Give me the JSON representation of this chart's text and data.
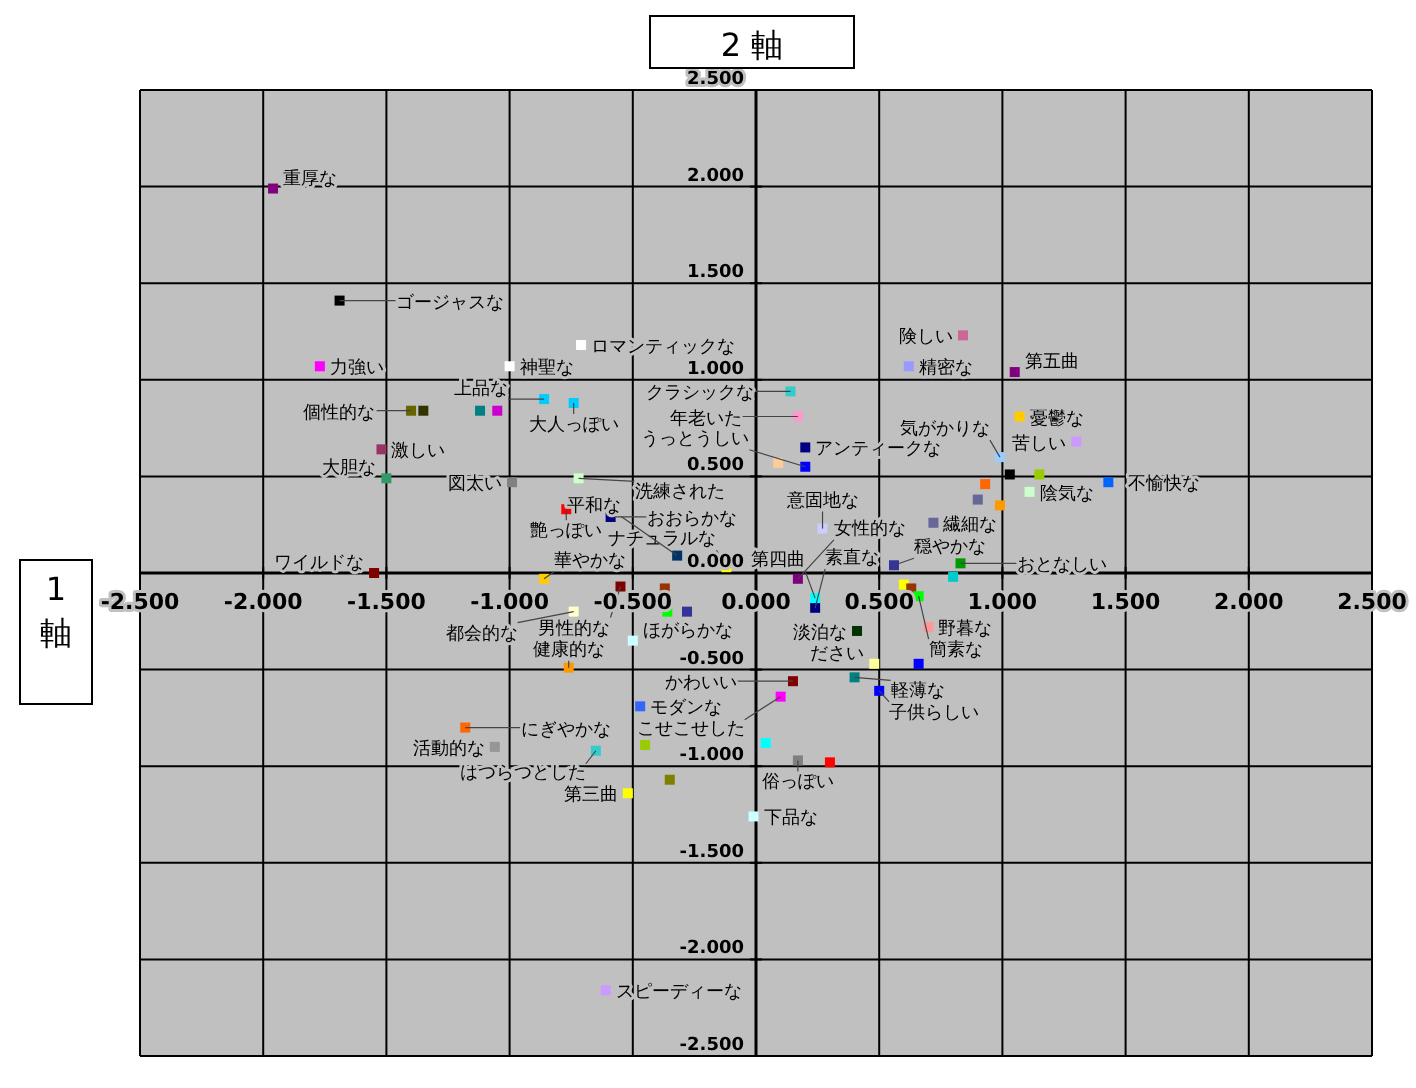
{
  "chart_data": {
    "type": "scatter",
    "ylabel": "2 軸",
    "xlabel": "1 軸",
    "xlim": [
      -2.5,
      2.5
    ],
    "ylim": [
      -2.5,
      2.5
    ],
    "xticks": [
      {
        "value": -2.5,
        "label": "-2.500"
      },
      {
        "value": -2,
        "label": "-2.000"
      },
      {
        "value": -1.5,
        "label": "-1.500"
      },
      {
        "value": -1,
        "label": "-1.000"
      },
      {
        "value": -0.5,
        "label": "-0.500"
      },
      {
        "value": 0,
        "label": "0.000"
      },
      {
        "value": 0.5,
        "label": "0.500"
      },
      {
        "value": 1,
        "label": "1.000"
      },
      {
        "value": 1.5,
        "label": "1.500"
      },
      {
        "value": 2,
        "label": "2.000"
      },
      {
        "value": 2.5,
        "label": "2.500"
      }
    ],
    "yticks": [
      {
        "value": -2.5,
        "label": "-2.500"
      },
      {
        "value": -2,
        "label": "-2.000"
      },
      {
        "value": -1.5,
        "label": "-1.500"
      },
      {
        "value": -1,
        "label": "-1.000"
      },
      {
        "value": -0.5,
        "label": "-0.500"
      },
      {
        "value": 0,
        "label": "0.000"
      },
      {
        "value": 0.5,
        "label": "0.500"
      },
      {
        "value": 1,
        "label": "1.000"
      },
      {
        "value": 1.5,
        "label": "1.500"
      },
      {
        "value": 2,
        "label": "2.000"
      },
      {
        "value": 2.5,
        "label": "2.500"
      }
    ],
    "grid": true,
    "marker": "square",
    "x": [
      -1.96,
      -1.69,
      -1.77,
      -1.0,
      -0.71,
      -0.86,
      -0.74,
      -1.4,
      -1.35,
      -1.12,
      -1.05,
      -1.52,
      -1.5,
      -0.99,
      -0.72,
      -0.77,
      -0.59,
      -1.55,
      -0.86,
      -0.55,
      -0.37,
      -0.74,
      -0.36,
      -0.28,
      -0.5,
      -0.76,
      -0.47,
      -1.18,
      -1.06,
      -0.65,
      -0.45,
      -0.35,
      -0.52,
      -0.61,
      -0.01,
      0.17,
      0.3,
      0.04,
      0.15,
      0.1,
      0.4,
      0.48,
      0.5,
      0.66,
      0.41,
      0.7,
      0.24,
      0.24,
      0.17,
      -0.12,
      -0.32,
      0.27,
      0.2,
      0.2,
      0.09,
      0.14,
      0.17,
      0.62,
      0.84,
      1.05,
      1.07,
      1.3,
      0.99,
      1.03,
      1.15,
      1.43,
      0.93,
      1.11,
      0.9,
      0.99,
      0.72,
      0.56,
      0.83,
      0.8,
      0.6,
      0.63,
      0.66
    ],
    "values": [
      1.99,
      1.41,
      1.07,
      1.07,
      1.18,
      0.9,
      0.88,
      0.84,
      0.84,
      0.84,
      0.84,
      0.64,
      0.49,
      0.47,
      0.49,
      0.33,
      0.29,
      0.0,
      -0.03,
      -0.07,
      -0.08,
      -0.2,
      -0.2,
      -0.2,
      -0.35,
      -0.49,
      -0.69,
      -0.8,
      -0.9,
      -0.92,
      -0.89,
      -1.07,
      -1.14,
      -2.16,
      -1.26,
      -0.97,
      -0.98,
      -0.88,
      -0.56,
      -0.64,
      -0.54,
      -0.47,
      -0.61,
      -0.47,
      -0.3,
      -0.28,
      -0.18,
      -0.13,
      -0.03,
      0.03,
      0.09,
      0.23,
      0.65,
      0.55,
      0.57,
      0.94,
      0.81,
      1.07,
      1.23,
      1.04,
      0.81,
      0.68,
      0.6,
      0.51,
      0.51,
      0.47,
      0.46,
      0.42,
      0.38,
      0.35,
      0.26,
      0.04,
      0.05,
      -0.02,
      -0.06,
      -0.08,
      -0.12
    ],
    "colors": [
      "#800080",
      "#000000",
      "#ff00ff",
      "#ffffff",
      "#ffffff",
      "#00ccff",
      "#00ccff",
      "#666600",
      "#333300",
      "#008080",
      "#cc00cc",
      "#993366",
      "#339966",
      "#808080",
      "#ccffcc",
      "#ff0000",
      "#000080",
      "#800000",
      "#ffcc00",
      "#800000",
      "#993300",
      "#ffffcc",
      "#00ff00",
      "#333399",
      "#ccffff",
      "#ff9900",
      "#3366ff",
      "#ff6600",
      "#969696",
      "#33cccc",
      "#99cc00",
      "#808000",
      "#ffff00",
      "#cc99ff",
      "#ccffff",
      "#808080",
      "#ff0000",
      "#00ffff",
      "#800000",
      "#ff00ff",
      "#008080",
      "#ffff99",
      "#0000ff",
      "#0000ff",
      "#003300",
      "#ff9999",
      "#000080",
      "#00ffff",
      "#800080",
      "#ffff00",
      "#003366",
      "#ccccff",
      "#000080",
      "#0000ff",
      "#ffcc99",
      "#33cccc",
      "#ff99cc",
      "#9999ff",
      "#cc6699",
      "#800080",
      "#ffcc00",
      "#cc99ff",
      "#99ccff",
      "#000000",
      "#99cc00",
      "#0066ff",
      "#ff6600",
      "#ccffcc",
      "#666699",
      "#ff9900",
      "#666699",
      "#333399",
      "#009900",
      "#00cccc",
      "#ffff00",
      "#993300",
      "#00ff00"
    ],
    "annotations": [
      {
        "text": "重厚な",
        "x": -1.96,
        "y": 1.99
      },
      {
        "text": "ゴージャスな",
        "x": -1.69,
        "y": 1.41
      },
      {
        "text": "力強い",
        "x": -1.77,
        "y": 1.07
      },
      {
        "text": "神聖な",
        "x": -1.0,
        "y": 1.07
      },
      {
        "text": "ロマンティックな",
        "x": -0.71,
        "y": 1.18
      },
      {
        "text": "上品な",
        "x": -0.86,
        "y": 0.9
      },
      {
        "text": "大人っぽい",
        "x": -0.74,
        "y": 0.88
      },
      {
        "text": "個性的な",
        "x": -1.4,
        "y": 0.84
      },
      {
        "text": "激しい",
        "x": -1.52,
        "y": 0.64
      },
      {
        "text": "大胆な",
        "x": -1.5,
        "y": 0.49
      },
      {
        "text": "図太い",
        "x": -0.99,
        "y": 0.47
      },
      {
        "text": "洗練された",
        "x": -0.72,
        "y": 0.49
      },
      {
        "text": "艶っぽい",
        "x": -0.77,
        "y": 0.33
      },
      {
        "text": "おおらかな",
        "x": -0.59,
        "y": 0.29
      },
      {
        "text": "ワイルドな",
        "x": -1.55,
        "y": 0.0
      },
      {
        "text": "華やかな",
        "x": -0.86,
        "y": -0.03
      },
      {
        "text": "男性的な",
        "x": -0.55,
        "y": -0.07
      },
      {
        "text": "都会的な",
        "x": -0.74,
        "y": -0.2
      },
      {
        "text": "ほがらかな",
        "x": -0.5,
        "y": -0.35
      },
      {
        "text": "健康的な",
        "x": -0.76,
        "y": -0.49
      },
      {
        "text": "モダンな",
        "x": -0.47,
        "y": -0.69
      },
      {
        "text": "にぎやかな",
        "x": -1.18,
        "y": -0.8
      },
      {
        "text": "活動的な",
        "x": -1.06,
        "y": -0.9
      },
      {
        "text": "はつらつとした",
        "x": -0.65,
        "y": -0.92
      },
      {
        "text": "第三曲",
        "x": -0.52,
        "y": -1.14
      },
      {
        "text": "スピーディーな",
        "x": -0.61,
        "y": -2.16
      },
      {
        "text": "下品な",
        "x": -0.01,
        "y": -1.26
      },
      {
        "text": "俗っぽい",
        "x": 0.17,
        "y": -0.97
      },
      {
        "text": "かわいい",
        "x": 0.15,
        "y": -0.56
      },
      {
        "text": "こせこせした",
        "x": 0.1,
        "y": -0.64
      },
      {
        "text": "軽薄な",
        "x": 0.4,
        "y": -0.54
      },
      {
        "text": "ださい",
        "x": 0.48,
        "y": -0.47
      },
      {
        "text": "子供らしい",
        "x": 0.5,
        "y": -0.61
      },
      {
        "text": "淡泊な",
        "x": 0.41,
        "y": -0.3
      },
      {
        "text": "野暮な",
        "x": 0.7,
        "y": -0.28
      },
      {
        "text": "素直な",
        "x": 0.24,
        "y": -0.18
      },
      {
        "text": "第四曲",
        "x": 0.24,
        "y": -0.13
      },
      {
        "text": "女性的な",
        "x": 0.17,
        "y": -0.03
      },
      {
        "text": "ナチュラルな",
        "x": -0.12,
        "y": 0.03
      },
      {
        "text": "平和な",
        "x": -0.32,
        "y": 0.09
      },
      {
        "text": "意固地な",
        "x": 0.27,
        "y": 0.23
      },
      {
        "text": "アンティークな",
        "x": 0.2,
        "y": 0.65
      },
      {
        "text": "うっとうしい",
        "x": 0.2,
        "y": 0.55
      },
      {
        "text": "クラシックな",
        "x": 0.14,
        "y": 0.94
      },
      {
        "text": "年老いた",
        "x": 0.17,
        "y": 0.81
      },
      {
        "text": "精密な",
        "x": 0.62,
        "y": 1.07
      },
      {
        "text": "険しい",
        "x": 0.84,
        "y": 1.23
      },
      {
        "text": "第五曲",
        "x": 1.05,
        "y": 1.04
      },
      {
        "text": "憂鬱な",
        "x": 1.07,
        "y": 0.81
      },
      {
        "text": "苦しい",
        "x": 1.3,
        "y": 0.68
      },
      {
        "text": "気がかりな",
        "x": 0.99,
        "y": 0.6
      },
      {
        "text": "不愉快な",
        "x": 1.43,
        "y": 0.47
      },
      {
        "text": "陰気な",
        "x": 1.11,
        "y": 0.42
      },
      {
        "text": "繊細な",
        "x": 0.72,
        "y": 0.26
      },
      {
        "text": "穏やかな",
        "x": 0.56,
        "y": 0.04
      },
      {
        "text": "おとなしい",
        "x": 0.83,
        "y": 0.05
      },
      {
        "text": "簡素な",
        "x": 0.66,
        "y": -0.12
      }
    ]
  }
}
